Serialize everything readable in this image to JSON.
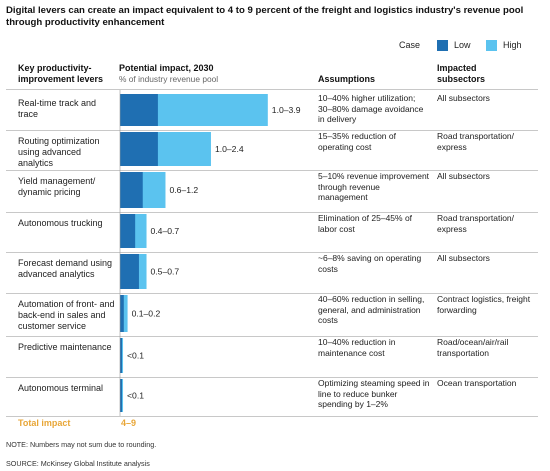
{
  "title": "Digital levers can create an impact equivalent to 4 to 9 percent of the freight and logistics industry's revenue pool through productivity enhancement",
  "legend": {
    "label": "Case",
    "low": "Low",
    "high": "High"
  },
  "headers": {
    "levers": "Key productivity-improvement levers",
    "impact": "Potential impact, 2030",
    "impact_sub": "% of industry revenue pool",
    "assumptions": "Assumptions",
    "subsectors": "Impacted subsectors"
  },
  "colors": {
    "low": "#1f6fb2",
    "high": "#5bc3ef",
    "total": "#e8a637",
    "rule": "#c8c8c8"
  },
  "rows": [
    {
      "lever": "Real-time track and trace",
      "value_label": "1.0–3.9",
      "low": 1.0,
      "high": 3.9,
      "assumption": "10–40% higher utilization; 30–80% damage avoidance in delivery",
      "subsectors": "All subsectors"
    },
    {
      "lever": "Routing optimization using advanced analytics",
      "value_label": "1.0–2.4",
      "low": 1.0,
      "high": 2.4,
      "assumption": "15–35% reduction of operating cost",
      "subsectors": "Road transportation/ express"
    },
    {
      "lever": "Yield management/ dynamic pricing",
      "value_label": "0.6–1.2",
      "low": 0.6,
      "high": 1.2,
      "assumption": "5–10% revenue improvement through revenue management",
      "subsectors": "All subsectors"
    },
    {
      "lever": "Autonomous trucking",
      "value_label": "0.4–0.7",
      "low": 0.4,
      "high": 0.7,
      "assumption": "Elimination of 25–45% of labor cost",
      "subsectors": "Road transportation/ express"
    },
    {
      "lever": "Forecast demand using advanced analytics",
      "value_label": "0.5–0.7",
      "low": 0.5,
      "high": 0.7,
      "assumption": "~6–8% saving on operating costs",
      "subsectors": "All subsectors"
    },
    {
      "lever": "Automation of front- and back-end in sales and customer service",
      "value_label": "0.1–0.2",
      "low": 0.1,
      "high": 0.2,
      "assumption": "40–60% reduction in selling, general, and administration costs",
      "subsectors": "Contract logistics, freight forwarding"
    },
    {
      "lever": "Predictive maintenance",
      "value_label": "<0.1",
      "low": 0.05,
      "high": 0.08,
      "assumption": "10–40% reduction in maintenance cost",
      "subsectors": "Road/ocean/air/rail transportation"
    },
    {
      "lever": "Autonomous terminal",
      "value_label": "<0.1",
      "low": 0.05,
      "high": 0.08,
      "assumption": "Optimizing steaming speed in line to reduce bunker spending by 1–2%",
      "subsectors": "Ocean transportation"
    }
  ],
  "total": {
    "label": "Total impact",
    "value": "4–9"
  },
  "note": "NOTE: Numbers may not sum due to rounding.",
  "source": "SOURCE: McKinsey Global Institute analysis",
  "chart_data": {
    "type": "bar",
    "title": "Potential impact, 2030",
    "ylabel": "% of industry revenue pool",
    "categories": [
      "Real-time track and trace",
      "Routing optimization using advanced analytics",
      "Yield management/ dynamic pricing",
      "Autonomous trucking",
      "Forecast demand using advanced analytics",
      "Automation of front- and back-end in sales and customer service",
      "Predictive maintenance",
      "Autonomous terminal"
    ],
    "series": [
      {
        "name": "Low",
        "values": [
          1.0,
          1.0,
          0.6,
          0.4,
          0.5,
          0.1,
          0.05,
          0.05
        ]
      },
      {
        "name": "High",
        "values": [
          3.9,
          2.4,
          1.2,
          0.7,
          0.7,
          0.2,
          0.08,
          0.08
        ]
      }
    ],
    "orientation": "horizontal",
    "legend": "top-right"
  }
}
